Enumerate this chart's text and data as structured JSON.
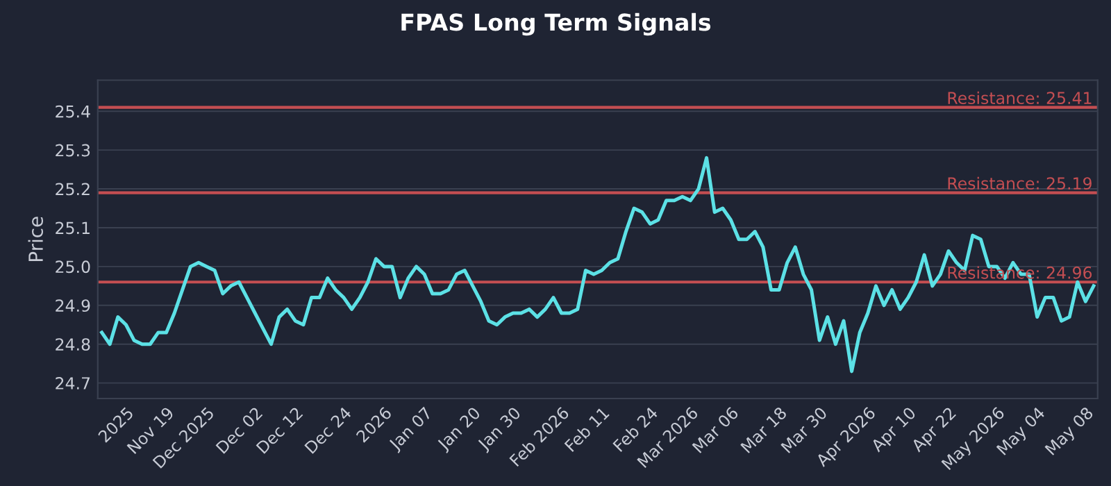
{
  "chart_data": {
    "type": "line",
    "title": "FPAS Long Term Signals",
    "ylabel": "Price",
    "categories": [
      null,
      null,
      null,
      "2025",
      null,
      null,
      null,
      null,
      "Nov 19",
      null,
      null,
      null,
      null,
      "Dec 2025",
      null,
      null,
      null,
      null,
      null,
      "Dec 02",
      null,
      null,
      null,
      null,
      "Dec 12",
      null,
      null,
      null,
      null,
      null,
      "Dec 24",
      null,
      null,
      null,
      null,
      "2026",
      null,
      null,
      null,
      null,
      "Jan 07",
      null,
      null,
      null,
      null,
      null,
      "Jan 20",
      null,
      null,
      null,
      null,
      "Jan 30",
      null,
      null,
      null,
      null,
      null,
      "Feb 2026",
      null,
      null,
      null,
      null,
      "Feb 11",
      null,
      null,
      null,
      null,
      null,
      "Feb 24",
      null,
      null,
      null,
      null,
      "Mar 2026",
      null,
      null,
      null,
      null,
      "Mar 06",
      null,
      null,
      null,
      null,
      null,
      "Mar 18",
      null,
      null,
      null,
      null,
      "Mar 30",
      null,
      null,
      null,
      null,
      null,
      "Apr 2026",
      null,
      null,
      null,
      null,
      "Apr 10",
      null,
      null,
      null,
      null,
      "Apr 22",
      null,
      null,
      null,
      null,
      null,
      "May 2026",
      null,
      null,
      null,
      null,
      "May 04",
      null,
      null,
      null,
      null,
      null,
      "May 08",
      null
    ],
    "series": [
      {
        "color": "#5ce1e6",
        "values": [
          24.83,
          24.8,
          24.87,
          24.85,
          24.81,
          24.8,
          24.8,
          24.83,
          24.83,
          24.88,
          24.94,
          25.0,
          25.01,
          25.0,
          24.99,
          24.93,
          24.95,
          24.96,
          24.92,
          24.88,
          24.84,
          24.8,
          24.87,
          24.89,
          24.86,
          24.85,
          24.92,
          24.92,
          24.97,
          24.94,
          24.92,
          24.89,
          24.92,
          24.96,
          25.02,
          25.0,
          25.0,
          24.92,
          24.97,
          25.0,
          24.98,
          24.93,
          24.93,
          24.94,
          24.98,
          24.99,
          24.95,
          24.91,
          24.86,
          24.85,
          24.87,
          24.88,
          24.88,
          24.89,
          24.87,
          24.89,
          24.92,
          24.88,
          24.88,
          24.89,
          24.99,
          24.98,
          24.99,
          25.01,
          25.02,
          25.09,
          25.15,
          25.14,
          25.11,
          25.12,
          25.17,
          25.17,
          25.18,
          25.17,
          25.2,
          25.28,
          25.14,
          25.15,
          25.12,
          25.07,
          25.07,
          25.09,
          25.05,
          24.94,
          24.94,
          25.01,
          25.05,
          24.98,
          24.94,
          24.81,
          24.87,
          24.8,
          24.86,
          24.73,
          24.83,
          24.88,
          24.95,
          24.9,
          24.94,
          24.89,
          24.92,
          24.96,
          25.03,
          24.95,
          24.98,
          25.04,
          25.01,
          24.99,
          25.08,
          25.07,
          25.0,
          25.0,
          24.97,
          25.01,
          24.98,
          24.98,
          24.87,
          24.92,
          24.92,
          24.86,
          24.87,
          24.96,
          24.91,
          24.95
        ]
      }
    ],
    "ylim": [
      24.66,
      25.48
    ],
    "yticks": [
      {
        "value": 24.7,
        "label": "24.7"
      },
      {
        "value": 24.8,
        "label": "24.8"
      },
      {
        "value": 24.9,
        "label": "24.9"
      },
      {
        "value": 25.0,
        "label": "25.0"
      },
      {
        "value": 25.1,
        "label": "25.1"
      },
      {
        "value": 25.2,
        "label": "25.2"
      },
      {
        "value": 25.3,
        "label": "25.3"
      },
      {
        "value": 25.4,
        "label": "25.4"
      }
    ],
    "ref_lines": [
      {
        "axis": "y",
        "value": 25.41,
        "label": "Resistance: 25.41",
        "color": "#c44e52"
      },
      {
        "axis": "y",
        "value": 25.19,
        "label": "Resistance: 25.19",
        "color": "#c44e52"
      },
      {
        "axis": "y",
        "value": 24.96,
        "label": "Resistance: 24.96",
        "color": "#c44e52"
      }
    ],
    "grid": "y",
    "legend": false,
    "line_style": "solid",
    "marker": "none"
  }
}
